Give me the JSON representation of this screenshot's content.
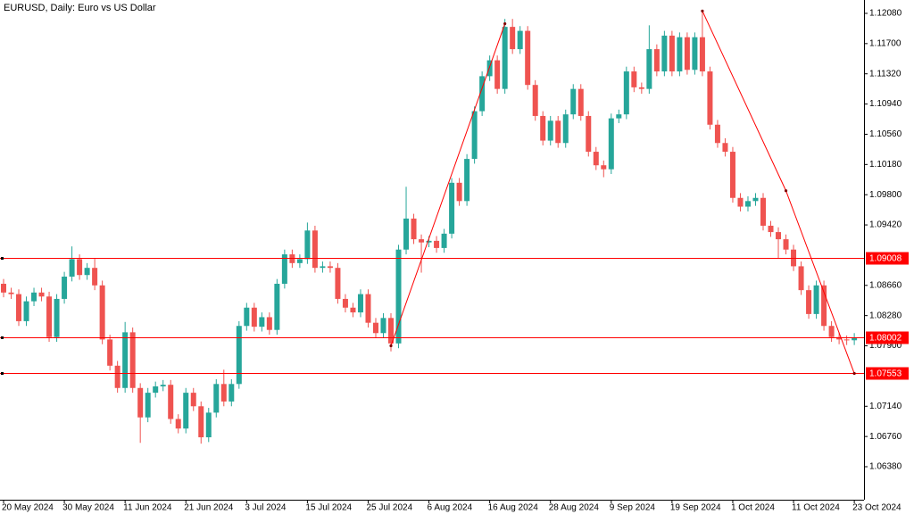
{
  "chart_data": {
    "type": "candlestick",
    "title": "EURUSD, Daily:  Euro vs US Dollar",
    "bull_color": "#26a69a",
    "bear_color": "#ef5350",
    "level_color": "#ff0000",
    "categories": [
      "20 May 2024",
      null,
      null,
      null,
      null,
      null,
      null,
      null,
      "30 May 2024",
      null,
      null,
      null,
      null,
      null,
      null,
      null,
      "11 Jun 2024",
      null,
      null,
      null,
      null,
      null,
      null,
      null,
      "21 Jun 2024",
      null,
      null,
      null,
      null,
      null,
      null,
      null,
      "3 Jul 2024",
      null,
      null,
      null,
      null,
      null,
      null,
      null,
      "15 Jul 2024",
      null,
      null,
      null,
      null,
      null,
      null,
      null,
      "25 Jul 2024",
      null,
      null,
      null,
      null,
      null,
      null,
      null,
      "6 Aug 2024",
      null,
      null,
      null,
      null,
      null,
      null,
      null,
      "16 Aug 2024",
      null,
      null,
      null,
      null,
      null,
      null,
      null,
      "28 Aug 2024",
      null,
      null,
      null,
      null,
      null,
      null,
      null,
      "9 Sep 2024",
      null,
      null,
      null,
      null,
      null,
      null,
      null,
      "19 Sep 2024",
      null,
      null,
      null,
      null,
      null,
      null,
      null,
      "1 Oct 2024",
      null,
      null,
      null,
      null,
      null,
      null,
      null,
      "11 Oct 2024",
      null,
      null,
      null,
      null,
      null,
      null,
      null,
      "23 Oct 2024"
    ],
    "open": [
      1.0868,
      1.0857,
      1.0855,
      1.0821,
      1.0846,
      1.0857,
      1.0852,
      1.0801,
      1.0849,
      1.0877,
      1.0899,
      1.0879,
      1.0888,
      1.0866,
      1.0798,
      1.0765,
      1.0737,
      1.0807,
      1.0737,
      1.07,
      1.0731,
      1.0739,
      1.0741,
      1.0698,
      1.0686,
      1.0731,
      1.0714,
      1.0675,
      1.0706,
      1.0742,
      1.072,
      1.0742,
      1.0815,
      1.0838,
      1.0814,
      1.0826,
      1.081,
      1.0868,
      1.0905,
      1.0894,
      1.0899,
      1.0935,
      1.0888,
      1.089,
      1.0888,
      1.0849,
      1.0838,
      1.0832,
      1.0855,
      1.0819,
      1.0806,
      1.0825,
      1.0793,
      1.0911,
      1.095,
      1.0924,
      1.092,
      1.0922,
      1.0913,
      1.0931,
      1.0995,
      1.0972,
      1.1025,
      1.1085,
      1.1129,
      1.1149,
      1.1113,
      1.1191,
      1.1163,
      1.1186,
      1.1118,
      1.1079,
      1.1048,
      1.1073,
      1.1045,
      1.1081,
      1.1113,
      1.1079,
      1.1034,
      1.1017,
      1.1012,
      1.1076,
      1.1081,
      1.1135,
      1.1115,
      1.1113,
      1.1163,
      1.1135,
      1.118,
      1.1135,
      1.1178,
      1.1137,
      1.1178,
      1.1135,
      1.1068,
      1.1045,
      1.1034,
      1.0976,
      1.0965,
      1.0972,
      1.0976,
      1.0941,
      1.0933,
      1.0924,
      1.0911,
      1.089,
      1.086,
      1.083,
      1.0866,
      1.0815,
      1.0801,
      1.0798,
      1.0797
    ],
    "high": [
      1.0874,
      1.0863,
      1.0861,
      1.0852,
      1.0863,
      1.0863,
      1.0858,
      1.0855,
      1.0883,
      1.0915,
      1.0905,
      1.0894,
      1.09,
      1.0872,
      1.0804,
      1.0771,
      1.082,
      1.0813,
      1.0743,
      1.0737,
      1.0745,
      1.0747,
      1.0747,
      1.0704,
      1.0737,
      1.0737,
      1.072,
      1.0712,
      1.0748,
      1.076,
      1.0748,
      1.0821,
      1.0844,
      1.0844,
      1.0832,
      1.0832,
      1.0874,
      1.0911,
      1.0911,
      1.0905,
      1.0945,
      1.0941,
      1.0896,
      1.0896,
      1.0894,
      1.0855,
      1.0844,
      1.0861,
      1.0861,
      1.0825,
      1.0831,
      1.0831,
      1.0917,
      1.099,
      1.0956,
      1.093,
      1.0928,
      1.0928,
      1.0937,
      1.1001,
      1.1001,
      1.1031,
      1.1091,
      1.1135,
      1.1155,
      1.1155,
      1.1201,
      1.1201,
      1.1192,
      1.1192,
      1.1124,
      1.1085,
      1.1079,
      1.1079,
      1.1087,
      1.1119,
      1.1119,
      1.1085,
      1.104,
      1.1023,
      1.1082,
      1.1087,
      1.1141,
      1.1141,
      1.1121,
      1.1193,
      1.1169,
      1.1186,
      1.1186,
      1.1184,
      1.1184,
      1.1184,
      1.1211,
      1.1141,
      1.1074,
      1.1051,
      1.104,
      1.0982,
      1.0978,
      1.0982,
      1.0982,
      1.0947,
      1.0939,
      1.093,
      1.0917,
      1.0896,
      1.0866,
      1.0872,
      1.0872,
      1.0821,
      1.0807,
      1.0803,
      1.0806
    ],
    "low": [
      1.0851,
      1.0849,
      1.0815,
      1.0815,
      1.084,
      1.0846,
      1.0795,
      1.0795,
      1.0843,
      1.0871,
      1.0873,
      1.0873,
      1.086,
      1.0792,
      1.0759,
      1.0731,
      1.0731,
      1.0731,
      1.0668,
      1.0694,
      1.0725,
      1.0733,
      1.0692,
      1.068,
      1.068,
      1.0708,
      1.0667,
      1.0669,
      1.07,
      1.0714,
      1.0714,
      1.0736,
      1.0809,
      1.0808,
      1.0808,
      1.0804,
      1.0804,
      1.0862,
      1.0888,
      1.0888,
      1.0893,
      1.0882,
      1.0882,
      1.0882,
      1.0843,
      1.0832,
      1.0826,
      1.0826,
      1.0813,
      1.08,
      1.08,
      1.0783,
      1.0787,
      1.0905,
      1.0918,
      1.0882,
      1.0914,
      1.0907,
      1.0907,
      1.0925,
      1.0966,
      1.0966,
      1.1019,
      1.1079,
      1.1123,
      1.1107,
      1.1107,
      1.1157,
      1.1157,
      1.1112,
      1.1073,
      1.1042,
      1.1042,
      1.1039,
      1.1039,
      1.1075,
      1.1073,
      1.1028,
      1.1011,
      1.1002,
      1.1006,
      1.107,
      1.1075,
      1.1109,
      1.1107,
      1.1107,
      1.1129,
      1.1129,
      1.1129,
      1.1129,
      1.1131,
      1.1131,
      1.1129,
      1.1062,
      1.1039,
      1.1028,
      1.097,
      1.0959,
      1.0959,
      1.0966,
      1.0935,
      1.0927,
      1.09,
      1.0905,
      1.0884,
      1.0854,
      1.0824,
      1.0824,
      1.0809,
      1.0795,
      1.0792,
      1.0791,
      1.0791
    ],
    "close": [
      1.0857,
      1.0855,
      1.0821,
      1.0846,
      1.0857,
      1.0852,
      1.0801,
      1.0849,
      1.0877,
      1.0899,
      1.0879,
      1.0888,
      1.0866,
      1.0798,
      1.0765,
      1.0737,
      1.0807,
      1.0737,
      1.07,
      1.0731,
      1.0739,
      1.0741,
      1.0698,
      1.0686,
      1.0731,
      1.0714,
      1.0675,
      1.0706,
      1.0742,
      1.072,
      1.0742,
      1.0815,
      1.0838,
      1.0814,
      1.0826,
      1.081,
      1.0868,
      1.0905,
      1.0894,
      1.0899,
      1.0935,
      1.0888,
      1.089,
      1.0888,
      1.0849,
      1.0838,
      1.0832,
      1.0855,
      1.0819,
      1.0806,
      1.0825,
      1.0793,
      1.0911,
      1.095,
      1.0924,
      1.092,
      1.0922,
      1.0913,
      1.0931,
      1.0995,
      1.0972,
      1.1025,
      1.1085,
      1.1129,
      1.1149,
      1.1113,
      1.1191,
      1.1163,
      1.1186,
      1.1118,
      1.1079,
      1.1048,
      1.1073,
      1.1045,
      1.1081,
      1.1113,
      1.1079,
      1.1034,
      1.1017,
      1.1012,
      1.1076,
      1.1081,
      1.1135,
      1.1115,
      1.1113,
      1.1163,
      1.1135,
      1.118,
      1.1135,
      1.1178,
      1.1137,
      1.1178,
      1.1135,
      1.1068,
      1.1045,
      1.1034,
      1.0976,
      1.0965,
      1.0972,
      1.0976,
      1.0941,
      1.0933,
      1.0924,
      1.0911,
      1.089,
      1.086,
      1.083,
      1.0866,
      1.0815,
      1.0801,
      1.0798,
      1.0797,
      1.08002
    ],
    "ylim": [
      1.05965,
      1.12248
    ],
    "yticks": [
      {
        "value": 1.1208,
        "label": "1.12080"
      },
      {
        "value": 1.117,
        "label": "1.11700"
      },
      {
        "value": 1.1132,
        "label": "1.11320"
      },
      {
        "value": 1.1094,
        "label": "1.10940"
      },
      {
        "value": 1.1056,
        "label": "1.10560"
      },
      {
        "value": 1.1018,
        "label": "1.10180"
      },
      {
        "value": 1.098,
        "label": "1.09800"
      },
      {
        "value": 1.0942,
        "label": "1.09420"
      },
      {
        "value": 1.0866,
        "label": "1.08660"
      },
      {
        "value": 1.0828,
        "label": "1.08280"
      },
      {
        "value": 1.079,
        "label": "1.07900"
      },
      {
        "value": 1.0714,
        "label": "1.07140"
      },
      {
        "value": 1.0676,
        "label": "1.06760"
      },
      {
        "value": 1.0638,
        "label": "1.06380"
      }
    ],
    "levels": [
      {
        "value": 1.09008,
        "label": "1.09008"
      },
      {
        "value": 1.08002,
        "label": "1.08002"
      },
      {
        "value": 1.07553,
        "label": "1.07553"
      }
    ],
    "trendlines": [
      {
        "x": [
          51,
          66
        ],
        "y": [
          1.079,
          1.1195
        ]
      },
      {
        "x": [
          92,
          103,
          112
        ],
        "y": [
          1.1211,
          1.0985,
          1.07553
        ]
      }
    ]
  }
}
